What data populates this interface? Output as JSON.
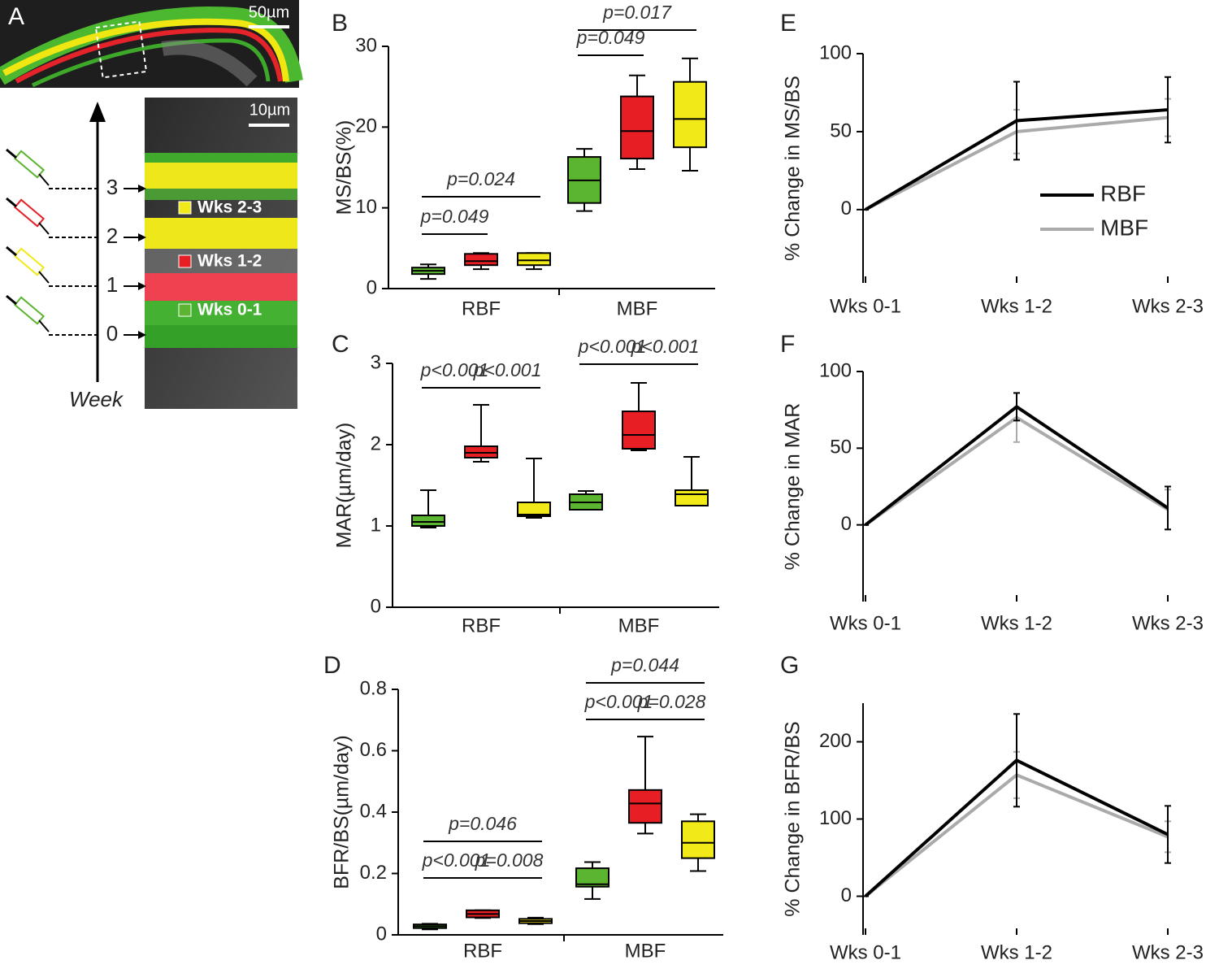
{
  "panel_a": {
    "label": "A",
    "scale_top": "50µm",
    "scale_bottom": "10µm",
    "legend": [
      {
        "label": "Wks 2-3",
        "color": "#f2e918"
      },
      {
        "label": "Wks 1-2",
        "color": "#e81e25"
      },
      {
        "label": "Wks 0-1",
        "color": "#5cb531"
      }
    ],
    "week_ticks": [
      "3",
      "2",
      "1",
      "0"
    ],
    "axis_label": "Week"
  },
  "chart_data": [
    {
      "type": "box",
      "panel_label": "B",
      "ylabel": "MS/BS(%)",
      "categories": [
        "RBF",
        "MBF"
      ],
      "ylim": [
        0,
        30
      ],
      "yticks": [
        0,
        10,
        20,
        30
      ],
      "series": [
        {
          "color": "#5cb531",
          "values": [
            [
              1.2,
              1.8,
              2.2,
              2.6,
              3.0
            ],
            [
              9.6,
              10.6,
              13.4,
              16.3,
              17.3
            ]
          ]
        },
        {
          "color": "#e81e25",
          "values": [
            [
              2.4,
              2.9,
              3.4,
              4.3,
              4.4
            ],
            [
              14.8,
              16.1,
              19.5,
              23.8,
              26.4
            ]
          ]
        },
        {
          "color": "#f2e918",
          "values": [
            [
              2.4,
              2.9,
              3.5,
              4.4,
              4.4
            ],
            [
              14.6,
              17.5,
              21.0,
              25.6,
              28.5
            ]
          ]
        }
      ],
      "annotations": [
        "p=0.049",
        "p=0.024",
        "p=0.049",
        "p=0.017"
      ]
    },
    {
      "type": "box",
      "panel_label": "C",
      "ylabel": "MAR(µm/day)",
      "categories": [
        "RBF",
        "MBF"
      ],
      "ylim": [
        0,
        3
      ],
      "yticks": [
        0,
        1,
        2,
        3
      ],
      "series": [
        {
          "color": "#5cb531",
          "values": [
            [
              0.98,
              1.0,
              1.05,
              1.13,
              1.44
            ],
            [
              1.2,
              1.2,
              1.29,
              1.39,
              1.43
            ]
          ]
        },
        {
          "color": "#e81e25",
          "values": [
            [
              1.79,
              1.84,
              1.9,
              1.98,
              2.49
            ],
            [
              1.93,
              1.95,
              2.12,
              2.41,
              2.76
            ]
          ]
        },
        {
          "color": "#f2e918",
          "values": [
            [
              1.1,
              1.12,
              1.14,
              1.29,
              1.83
            ],
            [
              1.25,
              1.25,
              1.39,
              1.44,
              1.85
            ]
          ]
        }
      ],
      "annotations": [
        "p<0.001",
        "p<0.001",
        "p<0.001",
        "p<0.001"
      ]
    },
    {
      "type": "box",
      "panel_label": "D",
      "ylabel": "BFR/BS(µm/day)",
      "categories": [
        "RBF",
        "MBF"
      ],
      "ylim": [
        0,
        0.8
      ],
      "yticks": [
        0,
        0.2,
        0.4,
        0.6,
        0.8
      ],
      "series": [
        {
          "color": "#5cb531",
          "values": [
            [
              0.018,
              0.022,
              0.028,
              0.034,
              0.036
            ],
            [
              0.117,
              0.157,
              0.165,
              0.217,
              0.237
            ]
          ]
        },
        {
          "color": "#e81e25",
          "values": [
            [
              0.055,
              0.057,
              0.068,
              0.08,
              0.08
            ],
            [
              0.33,
              0.365,
              0.428,
              0.472,
              0.646
            ]
          ]
        },
        {
          "color": "#f2e918",
          "values": [
            [
              0.035,
              0.038,
              0.045,
              0.052,
              0.056
            ],
            [
              0.208,
              0.25,
              0.3,
              0.37,
              0.393
            ]
          ]
        }
      ],
      "annotations": [
        "p=0.046",
        "p<0.001",
        "p=0.008",
        "p=0.044",
        "p<0.001",
        "p=0.028"
      ]
    },
    {
      "type": "line",
      "panel_label": "E",
      "ylabel": "% Change in MS/BS",
      "categories": [
        "Wks 0-1",
        "Wks 1-2",
        "Wks 2-3"
      ],
      "ylim": [
        -47,
        100
      ],
      "yticks": [
        0,
        50,
        100
      ],
      "legend": "right",
      "series": [
        {
          "name": "RBF",
          "color": "#000000",
          "values": [
            0,
            57,
            64
          ],
          "errors": [
            0,
            25,
            21
          ]
        },
        {
          "name": "MBF",
          "color": "#aaaaaa",
          "values": [
            0,
            50,
            59
          ],
          "errors": [
            0,
            14,
            12
          ]
        }
      ]
    },
    {
      "type": "line",
      "panel_label": "F",
      "ylabel": "% Change in MAR",
      "categories": [
        "Wks 0-1",
        "Wks 1-2",
        "Wks 2-3"
      ],
      "ylim": [
        -50,
        100
      ],
      "yticks": [
        0,
        50,
        100
      ],
      "series": [
        {
          "color": "#000000",
          "values": [
            0,
            77,
            11
          ],
          "errors": [
            0,
            9,
            14
          ]
        },
        {
          "color": "#aaaaaa",
          "values": [
            0,
            70,
            10
          ],
          "errors": [
            0,
            16,
            13
          ]
        }
      ]
    },
    {
      "type": "line",
      "panel_label": "G",
      "ylabel": "% Change in BFR/BS",
      "categories": [
        "Wks 0-1",
        "Wks 1-2",
        "Wks 2-3"
      ],
      "ylim": [
        -50,
        250
      ],
      "yticks": [
        0,
        100,
        200
      ],
      "series": [
        {
          "color": "#000000",
          "values": [
            0,
            176,
            80
          ],
          "errors": [
            0,
            60,
            37
          ]
        },
        {
          "color": "#aaaaaa",
          "values": [
            0,
            157,
            77
          ],
          "errors": [
            0,
            30,
            20
          ]
        }
      ]
    }
  ]
}
